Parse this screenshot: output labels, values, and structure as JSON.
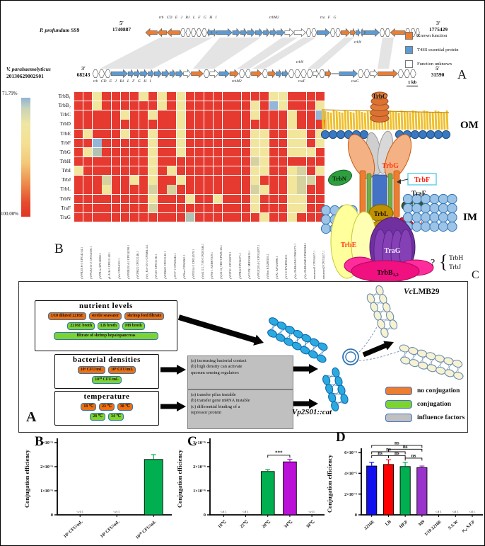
{
  "figure": {
    "return_mark": "↵"
  },
  "panelA": {
    "label": "A",
    "top_track": {
      "organism_italic": "P. profundum",
      "organism_rest": " SS9",
      "left_prime": "5′",
      "left_coord": "1740887",
      "right_prime": "3′",
      "right_coord": "1775429",
      "gene_row": "trb CD  E     J  B1 L  F  G H  I",
      "label_trbM2": "trbM2",
      "label_tra": "tra  F      G",
      "label_trbN": "trbN",
      "arrows": [
        [
          "o",
          "<",
          18
        ],
        [
          "o",
          "<",
          14
        ],
        [
          "o",
          "<",
          20
        ],
        [
          "w",
          "*",
          8
        ],
        [
          "w",
          "*",
          8
        ],
        [
          "w",
          "*",
          8
        ],
        [
          "w",
          "*",
          8
        ],
        [
          "w",
          "*",
          8
        ],
        [
          "b",
          "<",
          7
        ],
        [
          "b",
          ">",
          7
        ],
        [
          "b",
          ">",
          24
        ],
        [
          "b",
          ">",
          12
        ],
        [
          "b",
          ">",
          10
        ],
        [
          "b",
          ">",
          12
        ],
        [
          "b",
          ">",
          12
        ],
        [
          "b",
          ">",
          10
        ],
        [
          "b",
          ">",
          10
        ],
        [
          "b",
          ">",
          12
        ],
        [
          "w",
          ">",
          14
        ],
        [
          "w",
          ">",
          18
        ],
        [
          "w",
          "*",
          8
        ],
        [
          "w",
          "*",
          8
        ],
        [
          "b",
          ">",
          20
        ],
        [
          "w",
          "*",
          8
        ],
        [
          "w",
          "*",
          8
        ],
        [
          "o",
          ">",
          14
        ],
        [
          "o",
          ">",
          8
        ],
        [
          "b",
          ">",
          7
        ],
        [
          "b",
          "<",
          7
        ],
        [
          "b",
          ">",
          22
        ],
        [
          "w",
          "*",
          8
        ],
        [
          "w",
          "*",
          8
        ],
        [
          "o",
          "<",
          22
        ],
        [
          "w",
          "*",
          8
        ],
        [
          "w",
          "*",
          8
        ],
        [
          "w",
          "*",
          6
        ]
      ]
    },
    "bottom_track": {
      "organism_italic": "V. parahaemolyticus",
      "organism_rest": "20130629002S01",
      "left_prime": "3′",
      "left_coord": "68243",
      "right_prime": "5′",
      "right_coord": "31590",
      "gene_row": "trb CD  E   J  B1 L  F G H  I",
      "label_trbM2": "trbM2",
      "label_traF": "traF",
      "label_traG": "traG",
      "label_trbN": "trbN",
      "arrows": [
        [
          "w",
          "*",
          8
        ],
        [
          "w",
          "*",
          8
        ],
        [
          "w",
          "*",
          8
        ],
        [
          "b",
          ">",
          22
        ],
        [
          "b",
          ">",
          8
        ],
        [
          "b",
          ">",
          8
        ],
        [
          "b",
          ">",
          10
        ],
        [
          "b",
          ">",
          8
        ],
        [
          "b",
          ">",
          10
        ],
        [
          "b",
          ">",
          10
        ],
        [
          "b",
          ">",
          8
        ],
        [
          "b",
          ">",
          10
        ],
        [
          "w",
          ">",
          10
        ],
        [
          "o",
          ">",
          16
        ],
        [
          "w",
          "*",
          8
        ],
        [
          "w",
          ">",
          12
        ],
        [
          "b",
          ">",
          14
        ],
        [
          "o",
          ">",
          12
        ],
        [
          "w",
          "*",
          8
        ],
        [
          "w",
          "*",
          8
        ],
        [
          "o",
          ">",
          14
        ],
        [
          "w",
          "*",
          8
        ],
        [
          "o",
          ">",
          10
        ],
        [
          "b",
          ">",
          8
        ],
        [
          "b",
          ">",
          8
        ],
        [
          "w",
          "*",
          8
        ],
        [
          "w",
          "*",
          8
        ],
        [
          "w",
          "*",
          8
        ],
        [
          "w",
          "*",
          8
        ],
        [
          "w",
          ">",
          8
        ],
        [
          "w",
          "*",
          8
        ],
        [
          "o",
          ">",
          8
        ],
        [
          "-",
          "-",
          10
        ],
        [
          "b",
          ">",
          24
        ],
        [
          "w",
          "*",
          8
        ],
        [
          "w",
          "*",
          8
        ],
        [
          "w",
          ">",
          10
        ],
        [
          "o",
          ">",
          26
        ],
        [
          "w",
          "*",
          8
        ],
        [
          "w",
          "*",
          8
        ],
        [
          "w",
          "*",
          8
        ]
      ]
    },
    "legend": {
      "items": [
        {
          "label": "Known function",
          "color": "#ED7D31"
        },
        {
          "label": "T4SS essential protein",
          "color": "#5B9BD5"
        },
        {
          "label": "Function unknown",
          "color": "#FFFFFF"
        }
      ],
      "scale_label": "1 kb"
    }
  },
  "t4ss": {
    "panel_label": "C",
    "om_label": "OM",
    "im_label": "IM",
    "labels": {
      "trbC": "TrbC",
      "trbG": "TrbG",
      "trbN": "TrbN",
      "trbF": "TrbF",
      "traF": "TraF",
      "trbI": "TrbI",
      "trbL": "TrbL",
      "trbD": "TrbD",
      "trbE": "TrbE",
      "traG": "TraG",
      "trbB_base": "TrbB",
      "trbB_sub": "1,2",
      "question": "?",
      "brace": "{",
      "trbH": "TrbH",
      "trbJ": "TrbJ"
    }
  },
  "flow": {
    "panel_label": "A",
    "nutrient": {
      "title": "nutrient levels",
      "orange": [
        "1/10 diluted 2216E",
        "sterile seawater",
        "shrimp feed filtrate"
      ],
      "green": [
        "2216E broth",
        "LB broth",
        "M9 broth"
      ],
      "wide": "filtrate of shrimp hepatopancreas"
    },
    "density": {
      "title": "bacterial densities",
      "orange": [
        "10⁶ CFU/mL",
        "10⁸ CFU/mL"
      ],
      "green": [
        "10¹⁰ CFU/mL"
      ]
    },
    "temperature": {
      "title": "temperature",
      "orange": [
        "18 ℃",
        "23 ℃",
        "38 ℃"
      ],
      "green": [
        "28 ℃",
        "34 ℃"
      ]
    },
    "note1": "(a) increasing bacterial contact\n(b) high density can activate\nquorum sensing regulators",
    "note2": "(a) transfer pilus instable\n(b) transfer gene mRNA instable\n(c) differential binding of a\nrepressor protein",
    "recipient_italic": "Vc",
    "recipient_rest": "LMB29",
    "donor_text": "Vp2S01::",
    "donor_gene": "cat",
    "legend": [
      {
        "label": "no conjugation",
        "color": "#ED7D31"
      },
      {
        "label": "conjugation",
        "color": "#7CD332"
      },
      {
        "label": "influence factors",
        "color": "#C0C0C0"
      }
    ]
  },
  "chart_data": [
    {
      "type": "heatmap",
      "panel": "B",
      "scale_top": "71.79%",
      "scale_bottom": "100.00%",
      "value_range": [
        71.79,
        100.0
      ],
      "rows": [
        "TrbB₁",
        "TrbB₂",
        "TrbC",
        "TrbD",
        "TrbE",
        "TrbF",
        "TrbG",
        "TrbH",
        "TrbI",
        "TrbJ",
        "TrbL",
        "TrbN",
        "TraF",
        "TraG"
      ],
      "cols": [
        "pVPR2016-5 CP034104.1",
        "pVPGX015-2 CP034308.1",
        "pVPB1a AP014860.1",
        "pLA16-2 CP021148.1",
        "pVa CP034023.1",
        "pVPHB2014-2 CP034298.1",
        "pVO8623 CP033146.1",
        "pVp_Kor-D1-2 CP046414.1",
        "pVC2S CP033136.1",
        "pVO8622 CP033140.1",
        "p1937-1 CP022245.1",
        "pVBvu CP045861.1",
        "pVP2014-3 CP034579.1",
        "pVpK113_7180 CP020346.1",
        "pVPA-1 KM067509.1",
        "pVpK14_7480 CP028145.1",
        "pVOTK1 CP020078.1",
        "pVPR22 CP034571.1",
        "pVCUN1 MH900610.1",
        "pVPGX2014-2 CP034297.1",
        "pVBvu KX268305.1",
        "pVA1 KP324996.1",
        "pV110 KY499540.1",
        "pVp-2040b2AB CP065072.1",
        "pVp-2040b20dB CP068364.1",
        "unnamed1 CP034417.1",
        "unnamed2 CP074417.1"
      ],
      "cells": [
        "RRYRRRRYRYRYRRRRRRRRRYYRRRR",
        "RRYRRRRRRYRYRRRRRRRYRBYRRRY",
        "RRRRRYRRYRRYRRRRRRRYRRRYRRB",
        "RRRRRRRRRRRYRRRRRRRRRRRYRRR",
        "RYRRRYRRYRRYRRRRRRRYYRRYYRY",
        "RRBRRRRRYRRYRRRRRRRYYRRYYRY",
        "RYGRRRRRYRRYRRRRRRRYYRRYYYR",
        "RRRRRRRRYRRRRRRRRRRDYRRRRRR",
        "YRRRRRRRYRYRRRRRRRRYYRRYDRY",
        "RRRDRRYRYRRYRRRRRRRYRRRYDDR",
        "RRRYRRRRDRDRRRRRRRRDYRRYDRR",
        "RRRRRRRRYRRRYRRYRRRYRRRYYRR",
        "RRRRRRRRDRRRRRRRRRRYRRRYYRR",
        "RRRRRRRRRRRRGRRRRRRRYRRYRRR"
      ],
      "palette": {
        "R": "#E6392F",
        "Y": "#F2E59C",
        "D": "#D6D2A0",
        "B": "#94B6D8",
        "G": "#AFC2B4"
      }
    },
    {
      "type": "bar",
      "panel": "B",
      "ylabel": "Conjugation efficiency",
      "ylim": [
        0,
        3e-06
      ],
      "yticks": [
        "0",
        "1×10⁻⁶",
        "2×10⁻⁶",
        "3×10⁻⁶"
      ],
      "categories": [
        "10⁶ CFU/mL",
        "10⁸ CFU/mL",
        "10¹⁰ CFU/mL"
      ],
      "values": [
        0,
        0,
        2.3e-06
      ],
      "errors": [
        0,
        0,
        2e-07
      ],
      "colors": [
        "none",
        "none",
        "#00B050"
      ],
      "below_dl": [
        "<d.l.",
        "<d.l.",
        ""
      ]
    },
    {
      "type": "bar",
      "panel": "C",
      "ylabel": "Conjugation efficiency",
      "ylim": [
        0,
        3e-06
      ],
      "yticks": [
        "0",
        "1×10⁻⁶",
        "2×10⁻⁶",
        "3×10⁻⁶"
      ],
      "categories": [
        "18℃",
        "23℃",
        "28℃",
        "34℃",
        "38℃"
      ],
      "values": [
        0,
        0,
        1.8e-06,
        2.2e-06,
        0
      ],
      "errors": [
        0,
        0,
        8e-08,
        1e-07,
        0
      ],
      "colors": [
        "none",
        "none",
        "#00B050",
        "#BB10D8",
        "none"
      ],
      "below_dl": [
        "<d.l.",
        "<d.l.",
        "",
        "",
        "<d.l."
      ],
      "sig": [
        {
          "from": 2,
          "to": 3,
          "label": "***",
          "level": 0
        }
      ]
    },
    {
      "type": "bar",
      "panel": "D",
      "ylabel": "Conjugation efficiency",
      "ylim": [
        0,
        6e-05
      ],
      "yticks": [
        "0",
        "2×10⁻⁵",
        "4×10⁻⁵",
        "6×10⁻⁵"
      ],
      "categories": [
        "2216E",
        "LB",
        "HP.F",
        "M9",
        "1/10 2216E",
        "S.S.W",
        "S.F.F"
      ],
      "values": [
        4.7e-05,
        4.85e-05,
        4.65e-05,
        4.55e-05,
        0,
        0,
        0
      ],
      "errors": [
        3.5e-06,
        4.5e-06,
        4e-06,
        1.5e-06,
        0,
        0,
        0
      ],
      "colors": [
        "#1010EE",
        "#FF0000",
        "#00B050",
        "#9933CC",
        "none",
        "none",
        "none"
      ],
      "below_dl": [
        "",
        "",
        "",
        "",
        "<d.l.",
        "<d.l.",
        "<d.l."
      ],
      "sig": [
        {
          "from": 0,
          "to": 1,
          "label": "ns",
          "level": 0
        },
        {
          "from": 1,
          "to": 2,
          "label": "ns",
          "level": 0
        },
        {
          "from": 2,
          "to": 3,
          "label": "ns",
          "level": 0
        },
        {
          "from": 0,
          "to": 2,
          "label": "ns",
          "level": 1
        },
        {
          "from": 1,
          "to": 3,
          "label": "ns",
          "level": 1
        },
        {
          "from": 0,
          "to": 3,
          "label": "ns",
          "level": 2
        }
      ]
    }
  ]
}
